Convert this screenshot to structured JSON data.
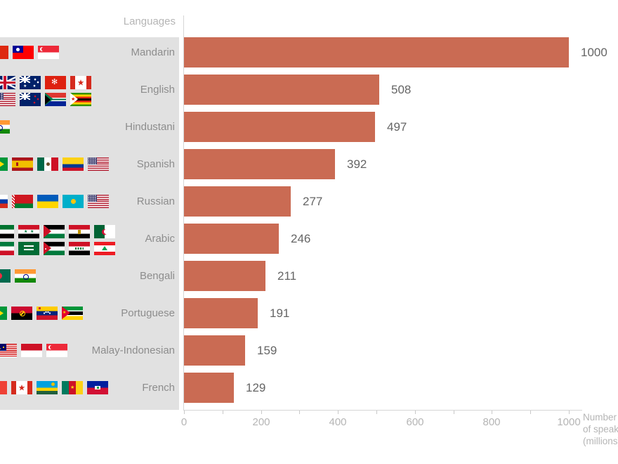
{
  "left_panel": {
    "header": "Languages",
    "rows": [
      {
        "language": "Mandarin",
        "flag_offset": -18,
        "flag_rows": [
          [
            "china",
            "taiwan",
            "singapore"
          ]
        ]
      },
      {
        "language": "English",
        "flag_offset": -8,
        "flag_rows": [
          [
            "uk",
            "australia",
            "hongkong",
            "canada"
          ],
          [
            "usa",
            "newzealand",
            "southafrica",
            "zimbabwe"
          ]
        ]
      },
      {
        "language": "Hindustani",
        "flag_offset": -16,
        "flag_rows": [
          [
            "india"
          ]
        ]
      },
      {
        "language": "Spanish",
        "flag_offset": -19,
        "flag_rows": [
          [
            "brazil",
            "spain",
            "mexico",
            "colombia",
            "usa"
          ]
        ]
      },
      {
        "language": "Russian",
        "flag_offset": -19,
        "flag_rows": [
          [
            "russia",
            "belarus",
            "ukraine",
            "kazakhstan",
            "usa"
          ]
        ]
      },
      {
        "language": "Arabic",
        "flag_offset": -10,
        "flag_rows": [
          [
            "uae",
            "syria",
            "palestine",
            "egypt",
            "algeria"
          ],
          [
            "kuwait",
            "saudiarabia",
            "jordan",
            "iraq",
            "lebanon"
          ]
        ]
      },
      {
        "language": "Bengali",
        "flag_offset": -15,
        "flag_rows": [
          [
            "bangladesh",
            "india"
          ]
        ]
      },
      {
        "language": "Portuguese",
        "flag_offset": -20,
        "flag_rows": [
          [
            "brazil",
            "angola",
            "venezuela",
            "mozambique"
          ]
        ]
      },
      {
        "language": "Malay-Indonesian",
        "flag_offset": -6,
        "flag_rows": [
          [
            "malaysia",
            "indonesia",
            "singapore"
          ]
        ]
      },
      {
        "language": "French",
        "flag_offset": -20,
        "flag_rows": [
          [
            "france",
            "canada",
            "rwanda",
            "cameroon",
            "haiti"
          ]
        ]
      }
    ]
  },
  "chart_data": {
    "type": "bar",
    "orientation": "horizontal",
    "title": "",
    "xlabel": "Number of speakers (millions)",
    "ylabel": "Languages",
    "categories": [
      "Mandarin",
      "English",
      "Hindustani",
      "Spanish",
      "Russian",
      "Arabic",
      "Bengali",
      "Portuguese",
      "Malay-Indonesian",
      "French"
    ],
    "values": [
      1000,
      508,
      497,
      392,
      277,
      246,
      211,
      191,
      159,
      129
    ],
    "xlim": [
      0,
      1000
    ],
    "x_major_ticks": [
      0,
      200,
      400,
      600,
      800,
      1000
    ],
    "x_minor_step": 100,
    "grid": false,
    "value_labels": true,
    "bar_color": "#ca6b53"
  },
  "axis_title_lines": [
    "Number",
    "of speakers",
    "(millions)"
  ],
  "colors": {
    "bar": "#ca6b53",
    "panel_background": "#e1e1e1",
    "row_label_text": "#8d8d8d",
    "faint_text": "#b5b5b5",
    "value_text": "#656565",
    "axis_line": "#d6d6d6"
  }
}
